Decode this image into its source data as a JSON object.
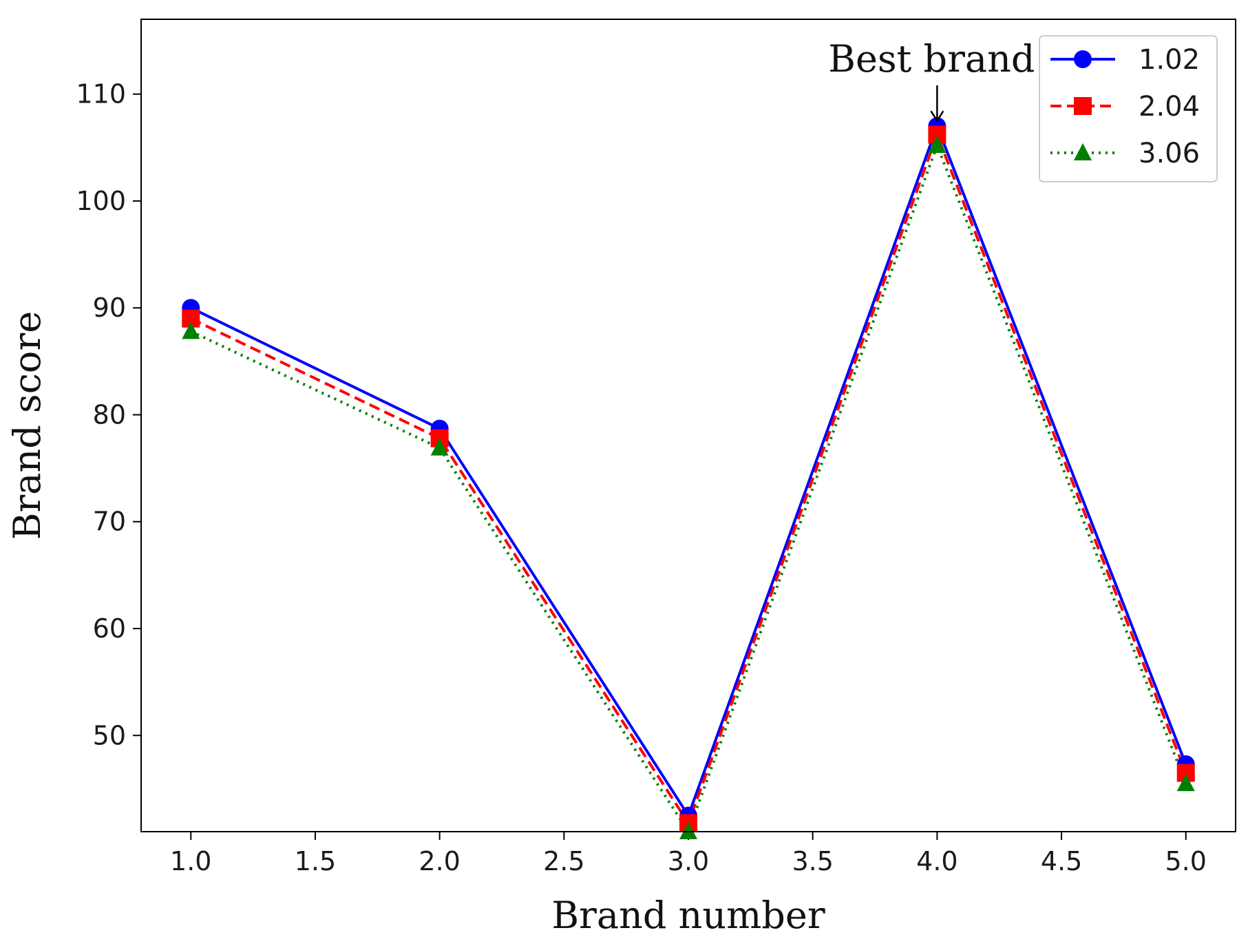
{
  "chart_data": {
    "type": "line",
    "title": "",
    "xlabel": "Brand number",
    "ylabel": "Brand score",
    "x": [
      1.0,
      2.0,
      3.0,
      4.0,
      5.0
    ],
    "xlim": [
      0.8,
      5.2
    ],
    "ylim": [
      41,
      117
    ],
    "xticks": [
      1.0,
      1.5,
      2.0,
      2.5,
      3.0,
      3.5,
      4.0,
      4.5,
      5.0
    ],
    "xtick_labels": [
      "1.0",
      "1.5",
      "2.0",
      "2.5",
      "3.0",
      "3.5",
      "4.0",
      "4.5",
      "5.0"
    ],
    "yticks": [
      50,
      60,
      70,
      80,
      90,
      100,
      110
    ],
    "ytick_labels": [
      "50",
      "60",
      "70",
      "80",
      "90",
      "100",
      "110"
    ],
    "grid": false,
    "legend_position": "top-right",
    "series": [
      {
        "name": "1.02",
        "values": [
          90.0,
          78.7,
          42.5,
          107.0,
          47.3
        ],
        "color": "#0000ff",
        "style": "solid",
        "marker": "circle"
      },
      {
        "name": "2.04",
        "values": [
          89.0,
          77.8,
          41.8,
          106.2,
          46.5
        ],
        "color": "#ff0000",
        "style": "dashed",
        "marker": "square"
      },
      {
        "name": "3.06",
        "values": [
          87.8,
          76.9,
          41.0,
          105.2,
          45.5
        ],
        "color": "#008000",
        "style": "dotted",
        "marker": "triangle"
      }
    ],
    "annotations": [
      {
        "text": "Best brand",
        "x": 4.0,
        "y": 107.0
      }
    ]
  }
}
